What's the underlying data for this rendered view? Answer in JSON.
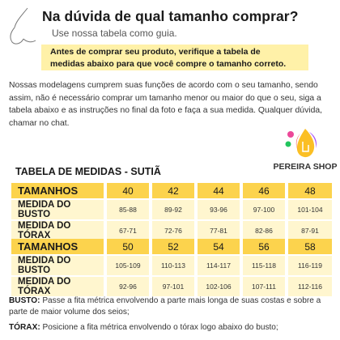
{
  "header": {
    "title": "Na dúvida de qual tamanho comprar?",
    "subtitle": "Use nossa tabela como guia."
  },
  "notice": {
    "line1": "Antes de comprar seu produto, verifique a tabela de",
    "line2": "medidas abaixo para que você compre o tamanho correto."
  },
  "intro": "Nossas modelagens cumprem suas funções de acordo com o seu tamanho, sendo assim, não é necessário comprar um tamanho menor ou maior do que o seu, siga a tabela abaixo e as instruções no final da foto e faça a sua medida. Qualquer dúvida, chamar no chat.",
  "brand": {
    "name": "PEREIRA SHOP",
    "logo_icon": "flame-drop-logo-icon"
  },
  "table_title": "TABELA DE MEDIDAS - SUTIÃ",
  "tables": [
    {
      "sizes_label": "TAMANHOS",
      "sizes": [
        "40",
        "42",
        "44",
        "46",
        "48"
      ],
      "bust_label": "MEDIDA DO BUSTO",
      "bust": [
        "85-88",
        "89-92",
        "93-96",
        "97-100",
        "101-104"
      ],
      "chest_label": "MEDIDA DO TÓRAX",
      "chest": [
        "67-71",
        "72-76",
        "77-81",
        "82-86",
        "87-91"
      ]
    },
    {
      "sizes_label": "TAMANHOS",
      "sizes": [
        "50",
        "52",
        "54",
        "56",
        "58"
      ],
      "bust_label": "MEDIDA DO BUSTO",
      "bust": [
        "105-109",
        "110-113",
        "114-117",
        "115-118",
        "116-119"
      ],
      "chest_label": "MEDIDA DO TÓRAX",
      "chest": [
        "92-96",
        "97-101",
        "102-106",
        "107-111",
        "112-116"
      ]
    }
  ],
  "notes": {
    "busto_label": "BUSTO:",
    "busto_text": " Passe a fita métrica envolvendo a parte mais longa de suas costas e sobre a parte de maior volume dos seios;",
    "torax_label": "TÓRAX:",
    "torax_text": " Posicione a fita métrica envolvendo o tórax logo abaixo do busto;"
  },
  "colors": {
    "header_row": "#fcd34d",
    "data_row": "#fff6cf",
    "notice_highlight": "#fff1a8"
  }
}
